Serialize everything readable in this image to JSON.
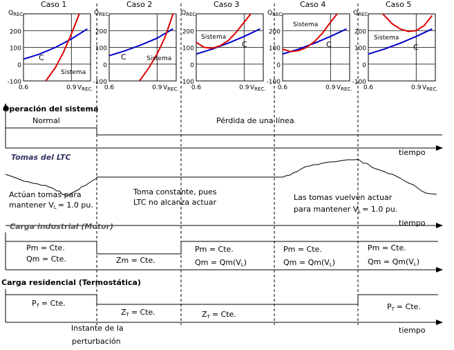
{
  "colors": {
    "system_curve": "#dd0000",
    "load_curve": "#0000cc",
    "ltc_heading": "#333366",
    "motor_heading": "#555555"
  },
  "chart_data": [
    {
      "type": "line",
      "title": "Caso 1",
      "xlim": [
        0.6,
        1.02
      ],
      "ylim": [
        -100,
        300
      ],
      "xticks": [
        "0.6",
        "0.9"
      ],
      "yticks": [
        "-100",
        "0",
        "100",
        "200"
      ],
      "ylabel": "Q",
      "ylabel_sub": "REC.",
      "xlabel": "V",
      "xlabel_sub": "REC.",
      "series": [
        {
          "name": "C",
          "x": [
            0.6,
            0.7,
            0.8,
            0.9,
            1.0
          ],
          "y": [
            30,
            60,
            100,
            150,
            210
          ]
        },
        {
          "name": "Sistema",
          "x": [
            0.74,
            0.8,
            0.85,
            0.9,
            0.95
          ],
          "y": [
            -100,
            -20,
            70,
            180,
            300
          ]
        }
      ]
    },
    {
      "type": "line",
      "title": "Caso 2",
      "xlim": [
        0.6,
        1.02
      ],
      "ylim": [
        -100,
        300
      ],
      "xticks": [
        "0.6",
        "0.9"
      ],
      "yticks": [
        "-100",
        "0",
        "100",
        "200"
      ],
      "ylabel": "Q",
      "ylabel_sub": "REC.",
      "xlabel": "V",
      "xlabel_sub": "REC.",
      "series": [
        {
          "name": "C",
          "x": [
            0.6,
            0.7,
            0.8,
            0.9,
            1.0
          ],
          "y": [
            50,
            80,
            115,
            155,
            210
          ]
        },
        {
          "name": "Sistema",
          "x": [
            0.79,
            0.85,
            0.9,
            0.95,
            1.0
          ],
          "y": [
            -100,
            -20,
            60,
            160,
            300
          ]
        }
      ]
    },
    {
      "type": "line",
      "title": "Caso 3",
      "xlim": [
        0.6,
        1.02
      ],
      "ylim": [
        -100,
        300
      ],
      "xticks": [
        "0.6",
        "0.9"
      ],
      "yticks": [
        "-100",
        "0",
        "100",
        "200"
      ],
      "ylabel": "Q",
      "ylabel_sub": "REC.",
      "xlabel": "V",
      "xlabel_sub": "REC.",
      "series": [
        {
          "name": "C",
          "x": [
            0.6,
            0.7,
            0.8,
            0.9,
            1.0
          ],
          "y": [
            60,
            90,
            125,
            165,
            210
          ]
        },
        {
          "name": "Sistema",
          "x": [
            0.6,
            0.65,
            0.7,
            0.75,
            0.8,
            0.85,
            0.9,
            0.95
          ],
          "y": [
            130,
            100,
            95,
            110,
            140,
            190,
            250,
            310
          ]
        }
      ]
    },
    {
      "type": "line",
      "title": "Caso 4",
      "xlim": [
        0.6,
        1.02
      ],
      "ylim": [
        -100,
        300
      ],
      "xticks": [
        "0.6",
        "0.9"
      ],
      "yticks": [
        "-100",
        "0",
        "100",
        "200"
      ],
      "ylabel": "Q",
      "ylabel_sub": "REC.",
      "xlabel": "V",
      "xlabel_sub": "REC.",
      "series": [
        {
          "name": "C",
          "x": [
            0.6,
            0.7,
            0.8,
            0.9,
            1.0
          ],
          "y": [
            60,
            90,
            125,
            165,
            210
          ]
        },
        {
          "name": "Sistema",
          "x": [
            0.6,
            0.65,
            0.7,
            0.75,
            0.8,
            0.85,
            0.9,
            0.95
          ],
          "y": [
            90,
            75,
            80,
            100,
            135,
            185,
            250,
            310
          ]
        }
      ]
    },
    {
      "type": "line",
      "title": "Caso 5",
      "xlim": [
        0.6,
        1.02
      ],
      "ylim": [
        -100,
        300
      ],
      "xticks": [
        "0.6",
        "0.9"
      ],
      "yticks": [
        "-100",
        "0",
        "100",
        "200"
      ],
      "ylabel": "Q",
      "ylabel_sub": "REC.",
      "xlabel": "V",
      "xlabel_sub": "REC.",
      "series": [
        {
          "name": "C",
          "x": [
            0.6,
            0.7,
            0.8,
            0.9,
            1.0
          ],
          "y": [
            60,
            90,
            125,
            165,
            210
          ]
        },
        {
          "name": "Sistema",
          "x": [
            0.68,
            0.75,
            0.8,
            0.85,
            0.9,
            0.95,
            1.0
          ],
          "y": [
            310,
            240,
            210,
            195,
            200,
            230,
            290
          ]
        }
      ]
    }
  ],
  "labels": {
    "system_curve": "Sistema",
    "load_curve": "C"
  },
  "timeline": {
    "time_label": "tiempo",
    "sections": [
      {
        "title": "Operación del sistema",
        "texts": [
          "Normal",
          "Pérdida de una línea"
        ]
      },
      {
        "title": "Tomas del LTC",
        "texts": [
          "Actúan tomas para",
          "mantener V",
          "L",
          "= 1.0 pu.",
          "Toma constante, pues",
          "LTC no alcanza actuar",
          "Las tomas vuelven actuar",
          "para mantener V",
          "L",
          "= 1.0 pu."
        ]
      },
      {
        "title": "Carga industrial (Motor)",
        "texts": [
          "Pm = Cte.",
          "Qm = Cte.",
          "Zm = Cte.",
          "Pm = Cte.",
          "Qm = Qm(V",
          "L",
          ")",
          "Pm = Cte.",
          "Qm = Qm(V",
          "L",
          ")",
          "Pm = Cte.",
          "Qm = Qm(V",
          "L",
          ")"
        ]
      },
      {
        "title": "Carga residencial (Termostática)",
        "texts": [
          "P",
          "T",
          "= Cte.",
          "Z",
          "T",
          "= Cte.",
          "Z",
          "T",
          "= Cte.",
          "P",
          "T",
          "= Cte."
        ]
      }
    ],
    "disturbance": [
      "Instante de la",
      "perturbación"
    ]
  }
}
